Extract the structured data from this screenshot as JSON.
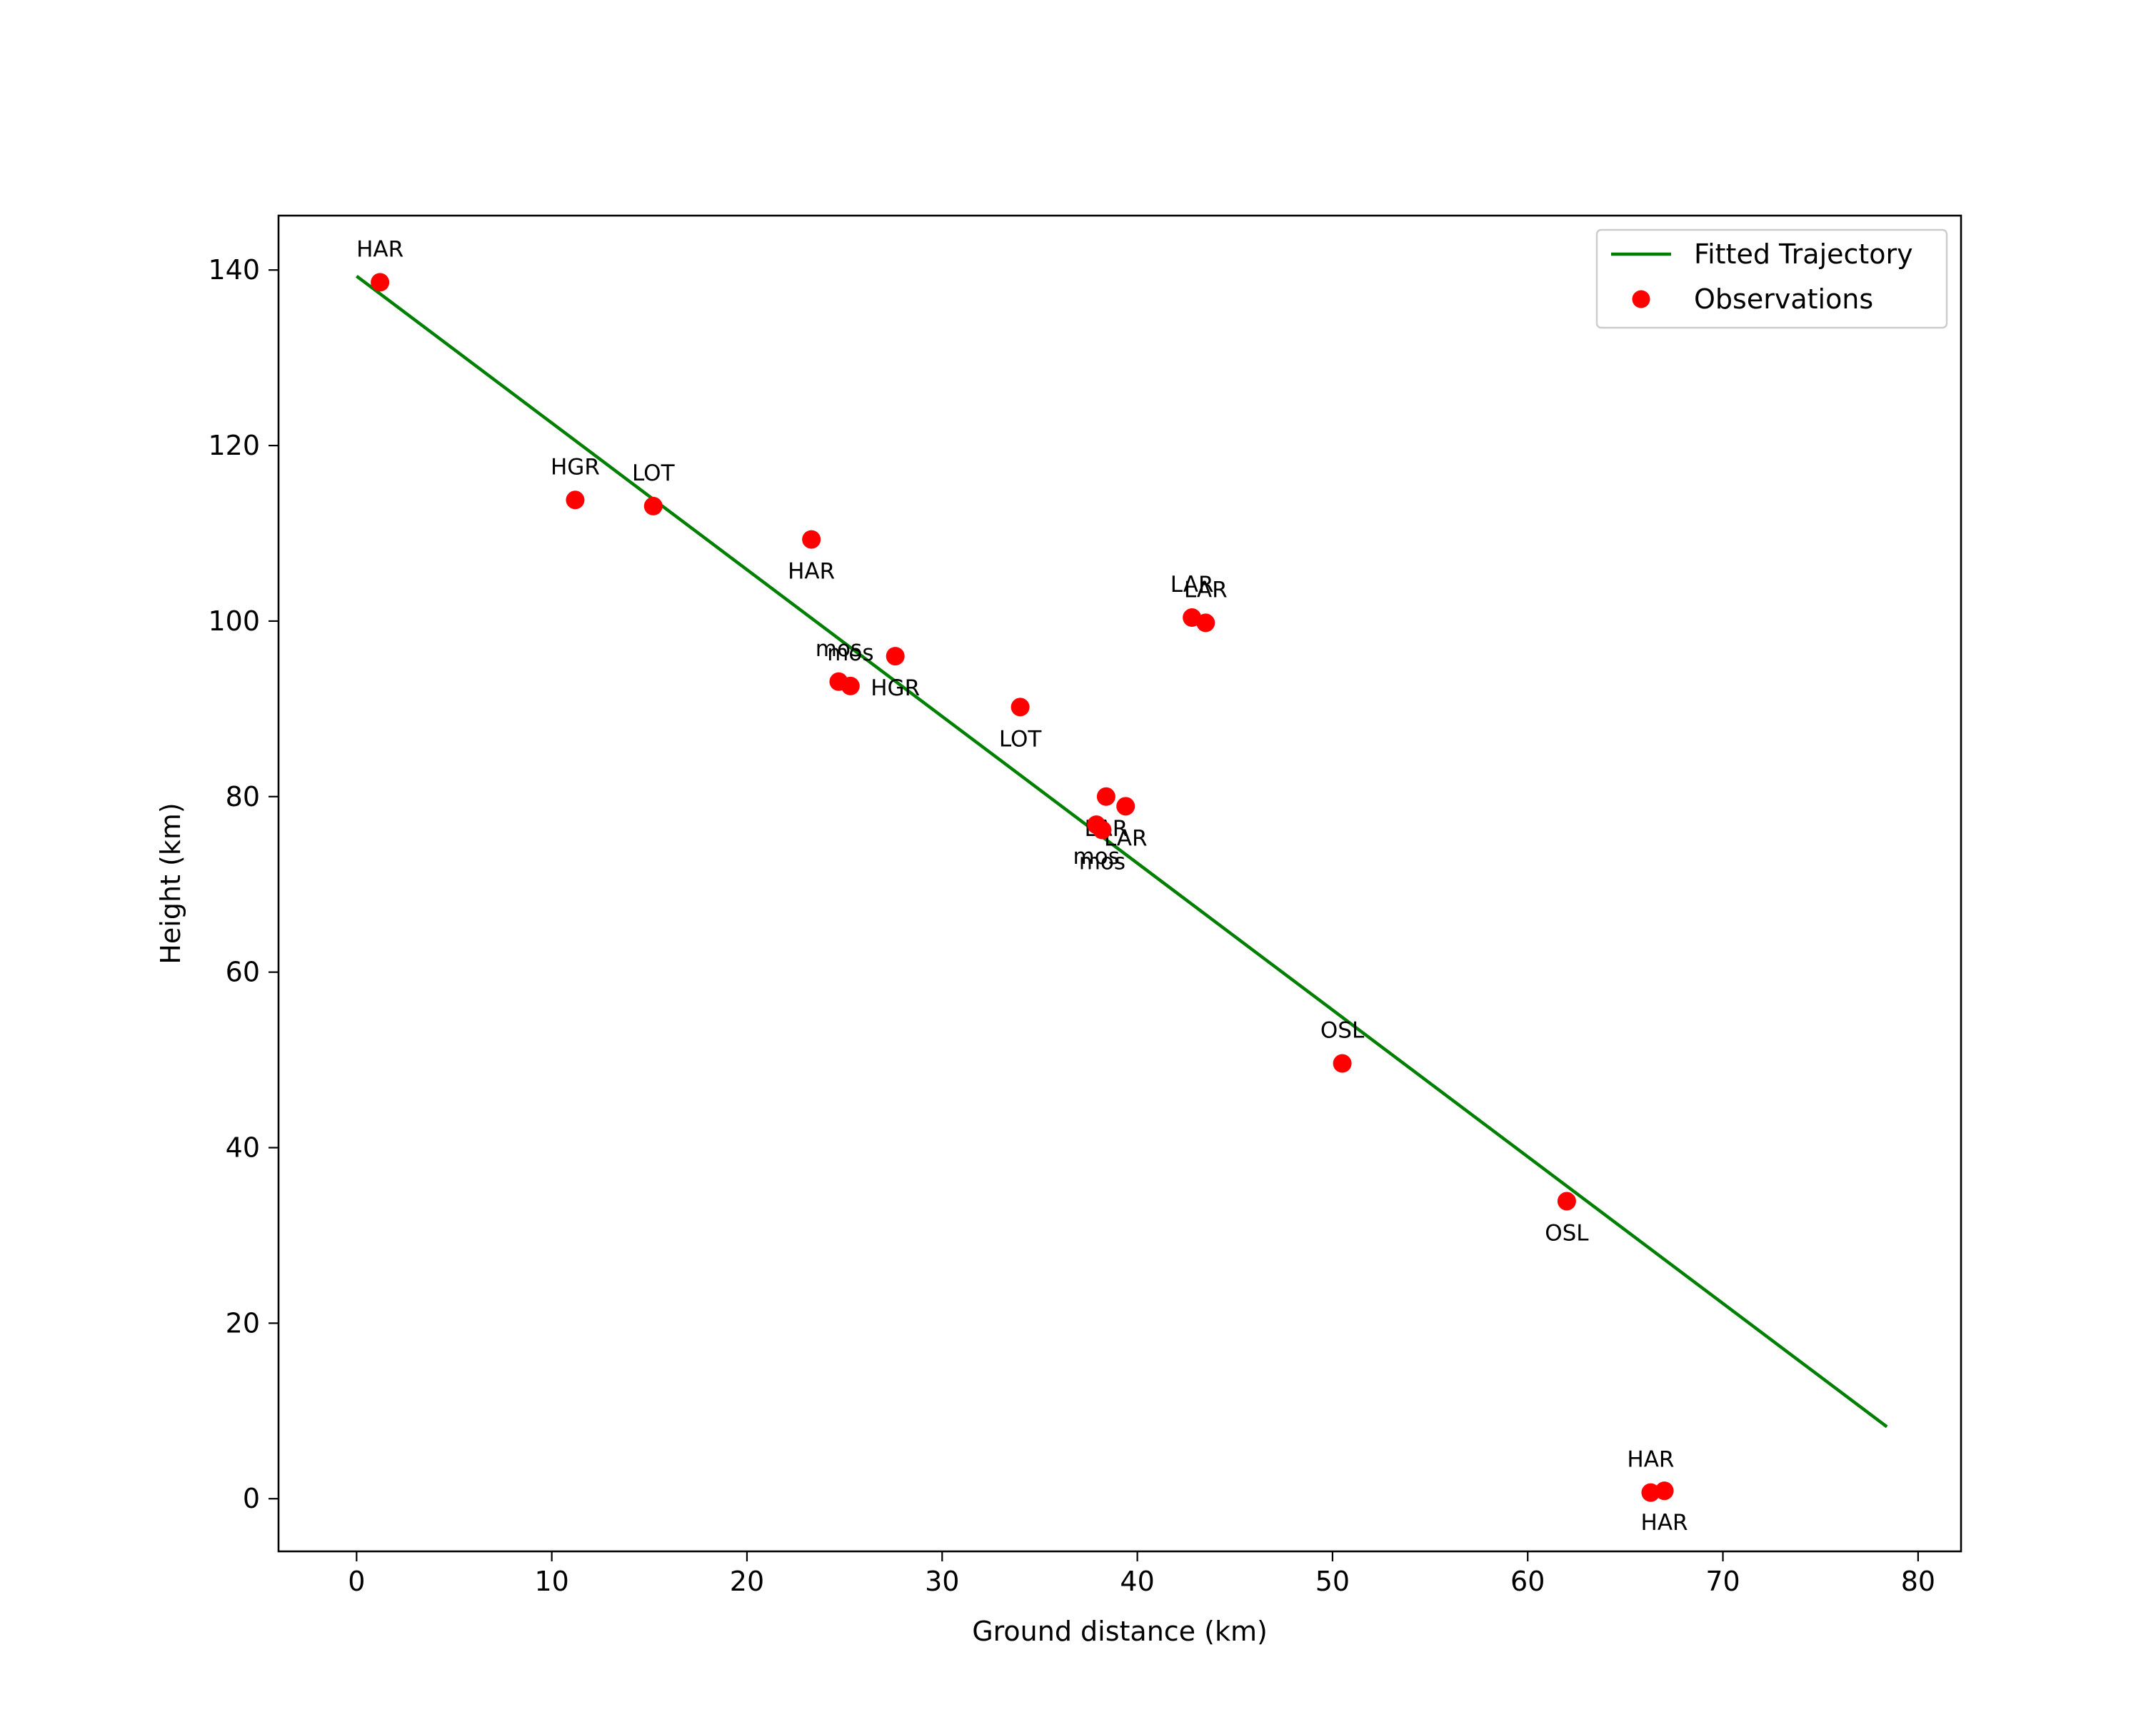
{
  "chart_data": {
    "type": "scatter",
    "title": "",
    "xlabel": "Ground distance (km)",
    "ylabel": "Height (km)",
    "xlim": [
      -4,
      82.2
    ],
    "ylim": [
      -6,
      146.2
    ],
    "xticks": [
      0,
      10,
      20,
      30,
      40,
      50,
      60,
      70,
      80
    ],
    "yticks": [
      0,
      20,
      40,
      60,
      80,
      100,
      120,
      140
    ],
    "grid": false,
    "legend_position": "top-right",
    "colors": {
      "trajectory": "#007f00",
      "observations": "#ff0000",
      "axes": "#000000"
    },
    "series": [
      {
        "name": "Fitted Trajectory",
        "kind": "line",
        "x": [
          0.0,
          78.4
        ],
        "y": [
          139.3,
          8.2
        ]
      },
      {
        "name": "Observations",
        "kind": "scatter",
        "points": [
          {
            "x": 1.2,
            "y": 138.6,
            "label": "HAR",
            "label_pos": "above"
          },
          {
            "x": 11.2,
            "y": 113.8,
            "label": "HGR",
            "label_pos": "above"
          },
          {
            "x": 15.2,
            "y": 113.1,
            "label": "LOT",
            "label_pos": "above"
          },
          {
            "x": 23.3,
            "y": 109.3,
            "label": "HAR",
            "label_pos": "below"
          },
          {
            "x": 24.7,
            "y": 93.1,
            "label": "mos",
            "label_pos": "above"
          },
          {
            "x": 25.3,
            "y": 92.6,
            "label": "mos",
            "label_pos": "above"
          },
          {
            "x": 27.6,
            "y": 96.0,
            "label": "HGR",
            "label_pos": "below"
          },
          {
            "x": 34.0,
            "y": 90.2,
            "label": "LOT",
            "label_pos": "below"
          },
          {
            "x": 38.4,
            "y": 80.0,
            "label": "LAR",
            "label_pos": "below"
          },
          {
            "x": 39.4,
            "y": 78.9,
            "label": "LAR",
            "label_pos": "below"
          },
          {
            "x": 37.9,
            "y": 76.8,
            "label": "mos",
            "label_pos": "below"
          },
          {
            "x": 38.2,
            "y": 76.2,
            "label": "mos",
            "label_pos": "below"
          },
          {
            "x": 42.8,
            "y": 100.4,
            "label": "LAR",
            "label_pos": "above"
          },
          {
            "x": 43.5,
            "y": 99.8,
            "label": "LAR",
            "label_pos": "above"
          },
          {
            "x": 50.5,
            "y": 49.6,
            "label": "OSL",
            "label_pos": "above"
          },
          {
            "x": 62.0,
            "y": 33.9,
            "label": "OSL",
            "label_pos": "below"
          },
          {
            "x": 66.3,
            "y": 0.7,
            "label": "HAR",
            "label_pos": "above"
          },
          {
            "x": 67.0,
            "y": 0.9,
            "label": "HAR",
            "label_pos": "below"
          }
        ]
      }
    ]
  }
}
